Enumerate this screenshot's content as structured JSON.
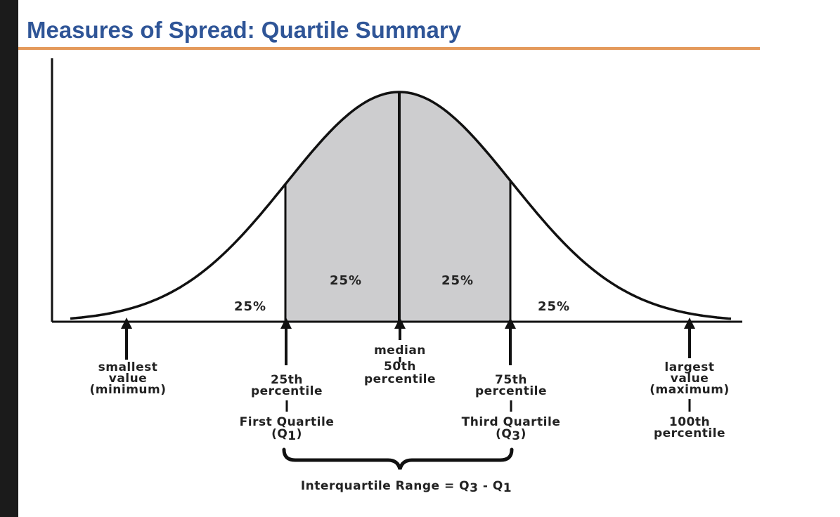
{
  "title": "Measures of Spread: Quartile Summary",
  "colors": {
    "title": "#2f5597",
    "rule": "#e49a5b",
    "fill": "#cdcdcf",
    "ink": "#111111"
  },
  "regions": {
    "left_tail": "25%",
    "q1_to_median": "25%",
    "median_to_q3": "25%",
    "right_tail": "25%"
  },
  "markers": {
    "minimum": {
      "lines": [
        "smallest",
        "value",
        "(minimum)"
      ]
    },
    "q1": {
      "lines": [
        "25th",
        "percentile"
      ],
      "quartile": "First Quartile",
      "symbol": "(Q",
      "sub": "1",
      "close": ")"
    },
    "median": {
      "lines": [
        "median",
        "50th",
        "percentile"
      ]
    },
    "q3": {
      "lines": [
        "75th",
        "percentile"
      ],
      "quartile": "Third Quartile",
      "symbol": "(Q",
      "sub": "3",
      "close": ")"
    },
    "maximum": {
      "lines": [
        "largest",
        "value",
        "(maximum)"
      ],
      "extra": [
        "100th",
        "percentile"
      ]
    }
  },
  "iqr": {
    "label": "Interquartile Range = ",
    "q3": "Q",
    "q3_sub": "3",
    "minus": " - ",
    "q1": "Q",
    "q1_sub": "1"
  }
}
